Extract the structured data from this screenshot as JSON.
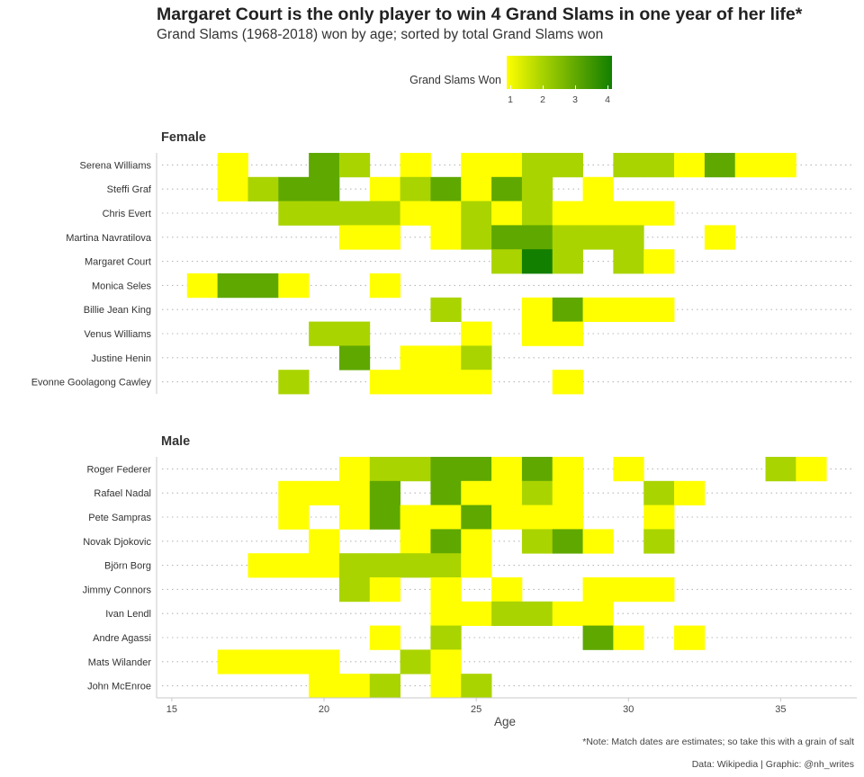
{
  "title": "Margaret Court is the only player to win 4 Grand Slams in one year of her life*",
  "subtitle": "Grand Slams (1968-2018) won by age; sorted by total Grand Slams won",
  "legend": {
    "title": "Grand Slams Won",
    "ticks": [
      "1",
      "2",
      "3",
      "4"
    ]
  },
  "caption_note": "*Note: Match dates are estimates; so take this with a grain of salt",
  "caption_source": "Data: Wikipedia | Graphic: @nh_writes",
  "colors": {
    "1": "#ffff00",
    "2": "#aad400",
    "3": "#5fa800",
    "4": "#127f00"
  },
  "chart_data": {
    "type": "heatmap",
    "xlabel": "Age",
    "xticks": [
      15,
      20,
      25,
      30,
      35
    ],
    "xlim": [
      14.5,
      37.5
    ],
    "value_scale": [
      1,
      4
    ],
    "facets": [
      {
        "name": "Female",
        "rows": [
          {
            "player": "Serena Williams",
            "cells": [
              [
                17,
                1
              ],
              [
                20,
                3
              ],
              [
                21,
                2
              ],
              [
                23,
                1
              ],
              [
                25,
                1
              ],
              [
                26,
                1
              ],
              [
                27,
                2
              ],
              [
                28,
                2
              ],
              [
                30,
                2
              ],
              [
                31,
                2
              ],
              [
                32,
                1
              ],
              [
                33,
                3
              ],
              [
                34,
                1
              ],
              [
                35,
                1
              ]
            ]
          },
          {
            "player": "Steffi Graf",
            "cells": [
              [
                17,
                1
              ],
              [
                18,
                2
              ],
              [
                19,
                3
              ],
              [
                20,
                3
              ],
              [
                22,
                1
              ],
              [
                23,
                2
              ],
              [
                24,
                3
              ],
              [
                25,
                1
              ],
              [
                26,
                3
              ],
              [
                27,
                2
              ],
              [
                29,
                1
              ]
            ]
          },
          {
            "player": "Chris Evert",
            "cells": [
              [
                19,
                2
              ],
              [
                20,
                2
              ],
              [
                21,
                2
              ],
              [
                22,
                2
              ],
              [
                23,
                1
              ],
              [
                24,
                1
              ],
              [
                25,
                2
              ],
              [
                26,
                1
              ],
              [
                27,
                2
              ],
              [
                28,
                1
              ],
              [
                29,
                1
              ],
              [
                30,
                1
              ],
              [
                31,
                1
              ]
            ]
          },
          {
            "player": "Martina Navratilova",
            "cells": [
              [
                21,
                1
              ],
              [
                22,
                1
              ],
              [
                24,
                1
              ],
              [
                25,
                2
              ],
              [
                26,
                3
              ],
              [
                27,
                3
              ],
              [
                28,
                2
              ],
              [
                29,
                2
              ],
              [
                30,
                2
              ],
              [
                33,
                1
              ]
            ]
          },
          {
            "player": "Margaret Court",
            "cells": [
              [
                26,
                2
              ],
              [
                27,
                4
              ],
              [
                28,
                2
              ],
              [
                30,
                2
              ],
              [
                31,
                1
              ]
            ]
          },
          {
            "player": "Monica Seles",
            "cells": [
              [
                16,
                1
              ],
              [
                17,
                3
              ],
              [
                18,
                3
              ],
              [
                19,
                1
              ],
              [
                22,
                1
              ]
            ]
          },
          {
            "player": "Billie Jean King",
            "cells": [
              [
                24,
                2
              ],
              [
                27,
                1
              ],
              [
                28,
                3
              ],
              [
                29,
                1
              ],
              [
                30,
                1
              ],
              [
                31,
                1
              ]
            ]
          },
          {
            "player": "Venus Williams",
            "cells": [
              [
                20,
                2
              ],
              [
                21,
                2
              ],
              [
                25,
                1
              ],
              [
                27,
                1
              ],
              [
                28,
                1
              ]
            ]
          },
          {
            "player": "Justine Henin",
            "cells": [
              [
                21,
                3
              ],
              [
                23,
                1
              ],
              [
                24,
                1
              ],
              [
                25,
                2
              ]
            ]
          },
          {
            "player": "Evonne Goolagong Cawley",
            "cells": [
              [
                19,
                2
              ],
              [
                22,
                1
              ],
              [
                23,
                1
              ],
              [
                24,
                1
              ],
              [
                25,
                1
              ],
              [
                28,
                1
              ]
            ]
          }
        ]
      },
      {
        "name": "Male",
        "rows": [
          {
            "player": "Roger Federer",
            "cells": [
              [
                21,
                1
              ],
              [
                22,
                2
              ],
              [
                23,
                2
              ],
              [
                24,
                3
              ],
              [
                25,
                3
              ],
              [
                26,
                1
              ],
              [
                27,
                3
              ],
              [
                28,
                1
              ],
              [
                30,
                1
              ],
              [
                35,
                2
              ],
              [
                36,
                1
              ]
            ]
          },
          {
            "player": "Rafael Nadal",
            "cells": [
              [
                19,
                1
              ],
              [
                20,
                1
              ],
              [
                21,
                1
              ],
              [
                22,
                3
              ],
              [
                24,
                3
              ],
              [
                25,
                1
              ],
              [
                26,
                1
              ],
              [
                27,
                2
              ],
              [
                28,
                1
              ],
              [
                31,
                2
              ],
              [
                32,
                1
              ]
            ]
          },
          {
            "player": "Pete Sampras",
            "cells": [
              [
                19,
                1
              ],
              [
                21,
                1
              ],
              [
                22,
                3
              ],
              [
                23,
                1
              ],
              [
                24,
                1
              ],
              [
                25,
                3
              ],
              [
                26,
                1
              ],
              [
                27,
                1
              ],
              [
                28,
                1
              ],
              [
                31,
                1
              ]
            ]
          },
          {
            "player": "Novak Djokovic",
            "cells": [
              [
                20,
                1
              ],
              [
                23,
                1
              ],
              [
                24,
                3
              ],
              [
                25,
                1
              ],
              [
                27,
                2
              ],
              [
                28,
                3
              ],
              [
                29,
                1
              ],
              [
                31,
                2
              ]
            ]
          },
          {
            "player": "Björn Borg",
            "cells": [
              [
                18,
                1
              ],
              [
                19,
                1
              ],
              [
                20,
                1
              ],
              [
                21,
                2
              ],
              [
                22,
                2
              ],
              [
                23,
                2
              ],
              [
                24,
                2
              ],
              [
                25,
                1
              ]
            ]
          },
          {
            "player": "Jimmy Connors",
            "cells": [
              [
                21,
                2
              ],
              [
                22,
                1
              ],
              [
                24,
                1
              ],
              [
                26,
                1
              ],
              [
                29,
                1
              ],
              [
                30,
                1
              ],
              [
                31,
                1
              ]
            ]
          },
          {
            "player": "Ivan Lendl",
            "cells": [
              [
                24,
                1
              ],
              [
                25,
                1
              ],
              [
                26,
                2
              ],
              [
                27,
                2
              ],
              [
                28,
                1
              ],
              [
                29,
                1
              ]
            ]
          },
          {
            "player": "Andre Agassi",
            "cells": [
              [
                22,
                1
              ],
              [
                24,
                2
              ],
              [
                29,
                3
              ],
              [
                30,
                1
              ],
              [
                32,
                1
              ]
            ]
          },
          {
            "player": "Mats Wilander",
            "cells": [
              [
                17,
                1
              ],
              [
                18,
                1
              ],
              [
                19,
                1
              ],
              [
                20,
                1
              ],
              [
                23,
                2
              ],
              [
                24,
                1
              ]
            ]
          },
          {
            "player": "John McEnroe",
            "cells": [
              [
                20,
                1
              ],
              [
                21,
                1
              ],
              [
                22,
                2
              ],
              [
                24,
                1
              ],
              [
                25,
                2
              ]
            ]
          }
        ]
      }
    ]
  }
}
